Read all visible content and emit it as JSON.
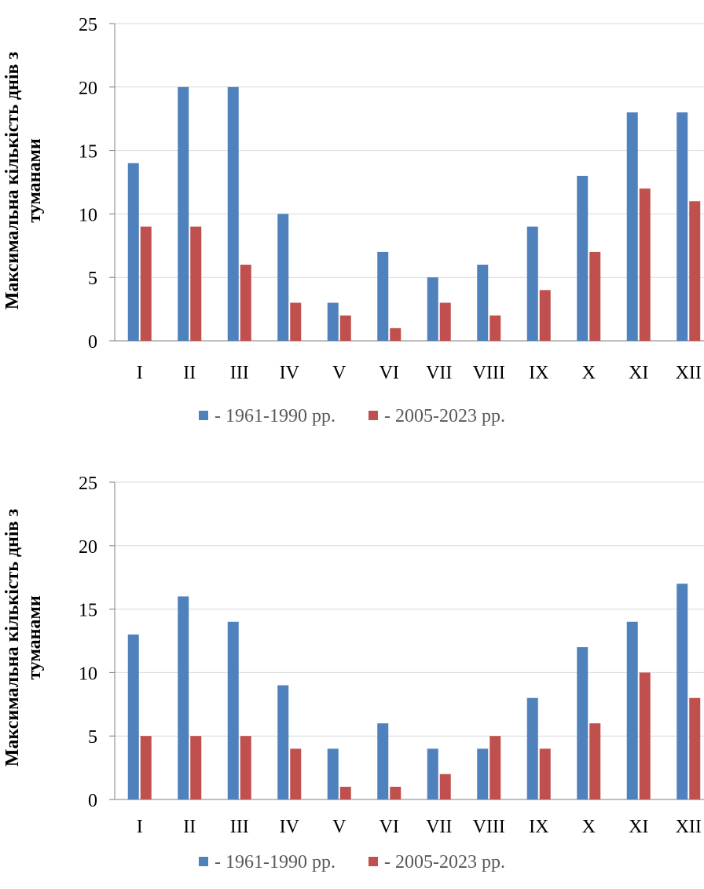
{
  "colors": {
    "series1": "#4f81bd",
    "series2": "#c0504d",
    "grid": "#d9d9d9",
    "axis": "#7f7f7f"
  },
  "chart_data": [
    {
      "type": "bar",
      "ylabel": [
        "Максимальна кількість днів з",
        "туманами"
      ],
      "categories": [
        "I",
        "II",
        "III",
        "IV",
        "V",
        "VI",
        "VII",
        "VIII",
        "IX",
        "X",
        "XI",
        "XII"
      ],
      "ylim": [
        0,
        25
      ],
      "yticks": [
        0,
        5,
        10,
        15,
        20,
        25
      ],
      "grid": true,
      "legend_position": "bottom",
      "series": [
        {
          "name": "- 1961-1990 рр.",
          "values": [
            14,
            20,
            20,
            10,
            3,
            7,
            5,
            6,
            9,
            13,
            18,
            18
          ]
        },
        {
          "name": "- 2005-2023 рр.",
          "values": [
            9,
            9,
            6,
            3,
            2,
            1,
            3,
            2,
            4,
            7,
            12,
            11
          ]
        }
      ]
    },
    {
      "type": "bar",
      "ylabel": [
        "Максимальна кількість днів з",
        "туманами"
      ],
      "categories": [
        "I",
        "II",
        "III",
        "IV",
        "V",
        "VI",
        "VII",
        "VIII",
        "IX",
        "X",
        "XI",
        "XII"
      ],
      "ylim": [
        0,
        25
      ],
      "yticks": [
        0,
        5,
        10,
        15,
        20,
        25
      ],
      "grid": true,
      "legend_position": "bottom",
      "series": [
        {
          "name": "- 1961-1990 рр.",
          "values": [
            13,
            16,
            14,
            9,
            4,
            6,
            4,
            4,
            8,
            12,
            14,
            17
          ]
        },
        {
          "name": "- 2005-2023 рр.",
          "values": [
            5,
            5,
            5,
            4,
            1,
            1,
            2,
            5,
            4,
            6,
            10,
            8
          ]
        }
      ]
    }
  ]
}
